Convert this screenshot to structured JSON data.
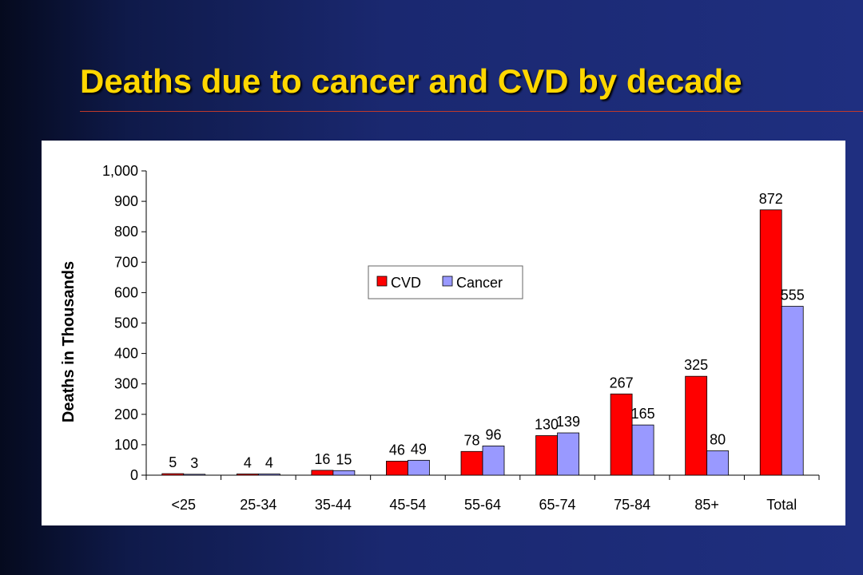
{
  "slide": {
    "title": "Deaths due to cancer and CVD by decade"
  },
  "colors": {
    "background": "#1f2f80",
    "title": "#ffd700",
    "title_rule": "#c0392b",
    "cvd": "#ff0000",
    "cancer": "#9999ff"
  },
  "chart_data": {
    "type": "bar",
    "title": "",
    "xlabel": "",
    "ylabel": "Deaths in Thousands",
    "ylim": [
      0,
      1000
    ],
    "yticks": [
      0,
      100,
      200,
      300,
      400,
      500,
      600,
      700,
      800,
      900,
      1000
    ],
    "ytick_labels": [
      "0",
      "100",
      "200",
      "300",
      "400",
      "500",
      "600",
      "700",
      "800",
      "900",
      "1,000"
    ],
    "categories": [
      "<25",
      "25-34",
      "35-44",
      "45-54",
      "55-64",
      "65-74",
      "75-84",
      "85+",
      "Total"
    ],
    "series": [
      {
        "name": "CVD",
        "color": "#ff0000",
        "values": [
          5,
          4,
          16,
          46,
          78,
          130,
          267,
          325,
          872
        ]
      },
      {
        "name": "Cancer",
        "color": "#9999ff",
        "values": [
          3,
          4,
          15,
          49,
          96,
          139,
          165,
          80,
          555
        ]
      }
    ],
    "data_labels": true,
    "grid": false,
    "legend_position": "center-left"
  }
}
